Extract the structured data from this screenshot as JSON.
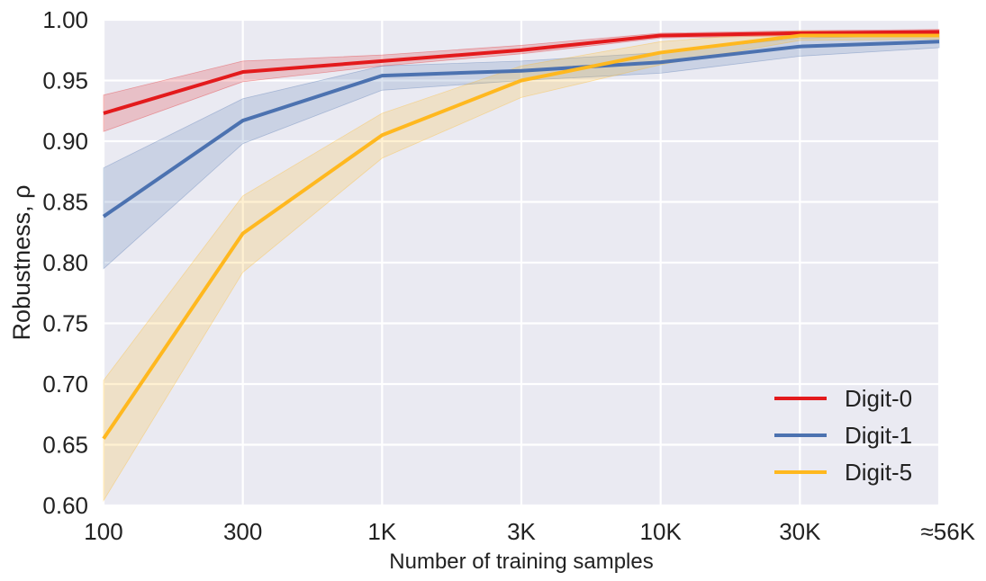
{
  "chart_data": {
    "type": "line",
    "title": "",
    "xlabel": "Number of training samples",
    "ylabel": "Robustness, ρ",
    "categories": [
      "100",
      "300",
      "1K",
      "3K",
      "10K",
      "30K",
      "≈56K"
    ],
    "ylim": [
      0.6,
      1.0
    ],
    "yticks": [
      "0.60",
      "0.65",
      "0.70",
      "0.75",
      "0.80",
      "0.85",
      "0.90",
      "0.95",
      "1.00"
    ],
    "grid": true,
    "legend_position": "bottom-right",
    "series": [
      {
        "name": "Digit-0",
        "color": "#e31a1c",
        "values": [
          0.923,
          0.957,
          0.966,
          0.975,
          0.987,
          0.989,
          0.99
        ],
        "lower": [
          0.908,
          0.949,
          0.962,
          0.972,
          0.985,
          0.987,
          0.988
        ],
        "upper": [
          0.938,
          0.966,
          0.971,
          0.979,
          0.989,
          0.991,
          0.992
        ]
      },
      {
        "name": "Digit-1",
        "color": "#4c72b0",
        "values": [
          0.838,
          0.917,
          0.954,
          0.958,
          0.965,
          0.978,
          0.982
        ],
        "lower": [
          0.795,
          0.898,
          0.942,
          0.95,
          0.956,
          0.97,
          0.977
        ],
        "upper": [
          0.878,
          0.935,
          0.962,
          0.966,
          0.973,
          0.985,
          0.987
        ]
      },
      {
        "name": "Digit-5",
        "color": "#ffb81f",
        "values": [
          0.655,
          0.824,
          0.905,
          0.95,
          0.973,
          0.987,
          0.987
        ],
        "lower": [
          0.604,
          0.792,
          0.886,
          0.936,
          0.963,
          0.983,
          0.984
        ],
        "upper": [
          0.703,
          0.855,
          0.923,
          0.962,
          0.982,
          0.991,
          0.99
        ]
      }
    ]
  }
}
